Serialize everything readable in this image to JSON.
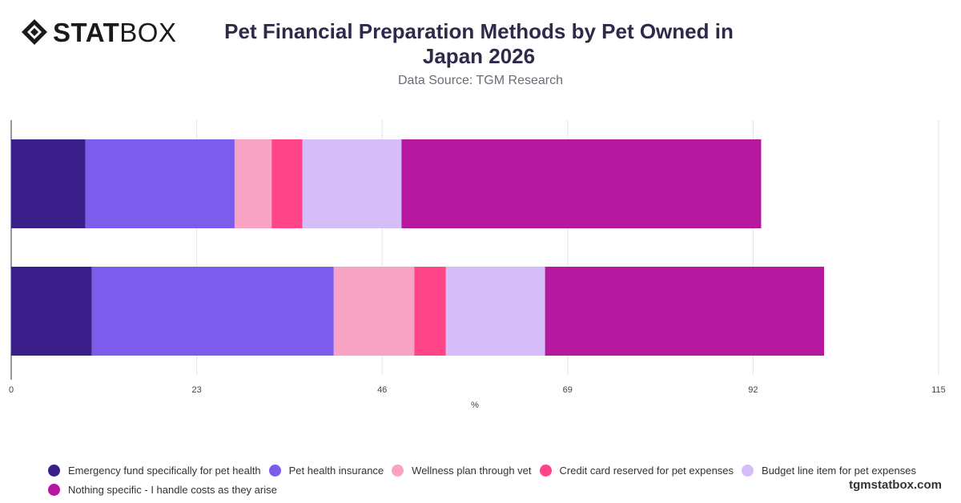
{
  "brand": {
    "bold": "STAT",
    "light": "BOX"
  },
  "footer": "tgmstatbox.com",
  "chart_data": {
    "type": "bar",
    "orientation": "horizontal",
    "stacked": true,
    "title": "Pet Financial Preparation Methods by Pet Owned in Japan 2026",
    "subtitle": "Data Source: TGM Research",
    "xlabel": "%",
    "ylabel": "",
    "xlim": [
      0,
      115
    ],
    "xticks": [
      0,
      23,
      46,
      69,
      92,
      115
    ],
    "grid": true,
    "legend_position": "bottom",
    "categories": [
      "",
      ""
    ],
    "series": [
      {
        "name": "Emergency fund specifically for pet health",
        "color": "#3a1f8a",
        "values": [
          9.2,
          10
        ]
      },
      {
        "name": "Pet health insurance",
        "color": "#7b5cec",
        "values": [
          18.5,
          30
        ]
      },
      {
        "name": "Wellness plan through vet",
        "color": "#f9a3c4",
        "values": [
          4.6,
          10
        ]
      },
      {
        "name": "Credit card reserved for pet expenses",
        "color": "#ff4488",
        "values": [
          3.8,
          3.9
        ]
      },
      {
        "name": "Budget line item for pet expenses",
        "color": "#d4bdf9",
        "values": [
          12.3,
          12.3
        ]
      },
      {
        "name": "Nothing specific - I handle costs as they arise",
        "color": "#b5179e",
        "values": [
          44.6,
          34.6
        ]
      }
    ]
  }
}
